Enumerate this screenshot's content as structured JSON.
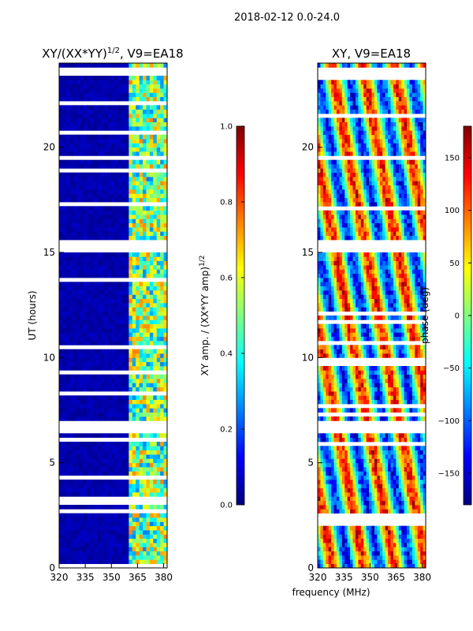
{
  "figure": {
    "suptitle": "2018-02-12 0.0-24.0",
    "xlabel_shared": "frequency (MHz)"
  },
  "chart_data": [
    {
      "type": "heatmap",
      "title": "XY/(XX*YY)",
      "title_exponent": "1/2",
      "title_suffix": ", V9=EA18",
      "ylabel": "UT (hours)",
      "xlim": [
        320,
        382
      ],
      "ylim": [
        0,
        24
      ],
      "xticks": [
        "320",
        "335",
        "350",
        "365",
        "380"
      ],
      "xtick_values": [
        320,
        335,
        350,
        365,
        380
      ],
      "yticks": [
        "0",
        "5",
        "10",
        "15",
        "20"
      ],
      "ytick_values": [
        0,
        5,
        10,
        15,
        20
      ],
      "colorbar": {
        "label": "XY amp. / (XX*YY amp)",
        "label_exponent": "1/2",
        "range": [
          0.0,
          1.0
        ],
        "ticks": [
          "0.0",
          "0.2",
          "0.4",
          "0.6",
          "0.8",
          "1.0"
        ],
        "tick_values": [
          0.0,
          0.2,
          0.4,
          0.6,
          0.8,
          1.0
        ],
        "colormap": "jet"
      },
      "bands": [
        {
          "from": 320,
          "to": 359,
          "level": 0.02
        },
        {
          "from": 359,
          "to": 382,
          "level": 0.45
        }
      ],
      "gaps_ut": [
        6.6,
        15.2,
        23.5
      ]
    },
    {
      "type": "heatmap",
      "title": "XY, V9=EA18",
      "xlim": [
        320,
        382
      ],
      "ylim": [
        0,
        24
      ],
      "xticks": [
        "320",
        "335",
        "350",
        "365",
        "380"
      ],
      "xtick_values": [
        320,
        335,
        350,
        365,
        380
      ],
      "yticks": [
        "0",
        "5",
        "10",
        "15",
        "20"
      ],
      "ytick_values": [
        0,
        5,
        10,
        15,
        20
      ],
      "colorbar": {
        "label": "phase (deg)",
        "range": [
          -180,
          180
        ],
        "ticks": [
          "−150",
          "−100",
          "−50",
          "0",
          "50",
          "100",
          "150"
        ],
        "tick_values": [
          -150,
          -100,
          -50,
          0,
          50,
          100,
          150
        ],
        "colormap": "jet"
      },
      "gaps_ut": [
        6.6,
        15.2,
        23.5
      ]
    }
  ],
  "colors": {
    "jet": [
      "#00007f",
      "#0000ff",
      "#007fff",
      "#00ffff",
      "#7fff7f",
      "#ffff00",
      "#ff7f00",
      "#ff0000",
      "#7f0000"
    ]
  }
}
